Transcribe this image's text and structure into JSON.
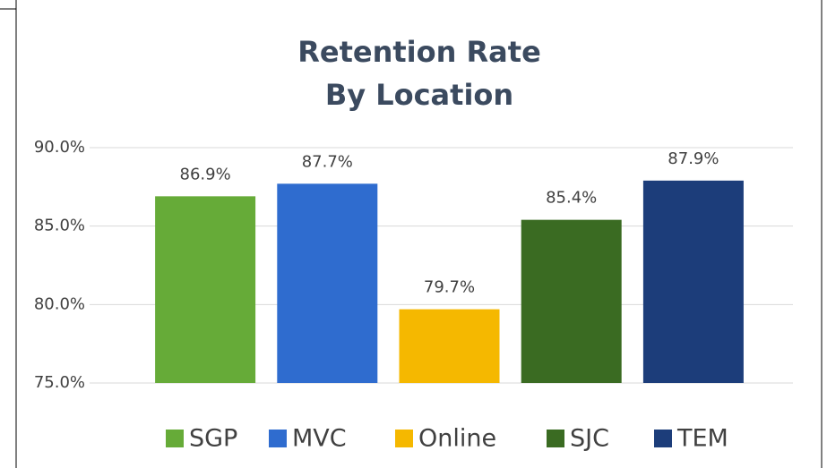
{
  "chart_data": {
    "type": "bar",
    "title": "Retention Rate",
    "subtitle": "By Location",
    "categories": [
      "SGP",
      "MVC",
      "Online",
      "SJC",
      "TEM"
    ],
    "values": [
      86.9,
      87.7,
      79.7,
      85.4,
      87.9
    ],
    "value_labels": [
      "86.9%",
      "87.7%",
      "79.7%",
      "85.4%",
      "87.9%"
    ],
    "colors": [
      "#66ab38",
      "#2f6ccf",
      "#f5b800",
      "#3a6b22",
      "#1c3d7a"
    ],
    "ylim": [
      75,
      90
    ],
    "yticks": [
      {
        "value": 75,
        "label": "75.0%"
      },
      {
        "value": 80,
        "label": "80.0%"
      },
      {
        "value": 85,
        "label": "85.0%"
      },
      {
        "value": 90,
        "label": "90.0%"
      }
    ],
    "grid": true,
    "legend": "bottom"
  }
}
